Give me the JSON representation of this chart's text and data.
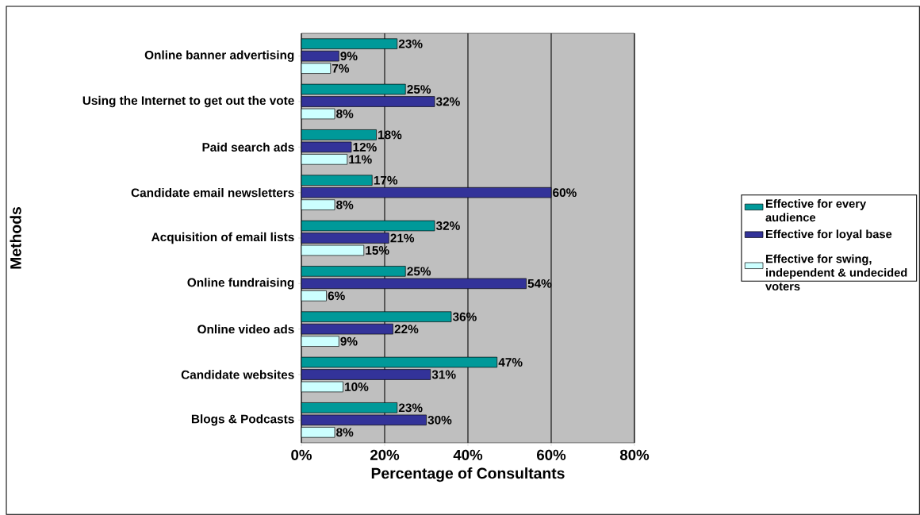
{
  "chart_data": {
    "type": "bar",
    "orientation": "horizontal",
    "xlabel": "Percentage of Consultants",
    "ylabel": "Methods",
    "categories": [
      "Online banner advertising",
      "Using the Internet to get out the vote",
      "Paid search ads",
      "Candidate email newsletters",
      "Acquisition of email lists",
      "Online fundraising",
      "Online video ads",
      "Candidate websites",
      "Blogs & Podcasts"
    ],
    "series": [
      {
        "name": "Effective for every audience",
        "color": "#009999",
        "values": [
          23,
          25,
          18,
          17,
          32,
          25,
          36,
          47,
          23
        ],
        "value_labels": [
          "23%",
          "25%",
          "18%",
          "17%",
          "32%",
          "25%",
          "36%",
          "47%",
          "23%"
        ]
      },
      {
        "name": "Effective for loyal base",
        "color": "#333399",
        "values": [
          9,
          32,
          12,
          60,
          21,
          54,
          22,
          31,
          30
        ],
        "value_labels": [
          "9%",
          "32%",
          "12%",
          "60%",
          "21%",
          "54%",
          "22%",
          "31%",
          "30%"
        ]
      },
      {
        "name": "Effective for swing, independent & undecided voters",
        "color": "#ccffff",
        "values": [
          7,
          8,
          11,
          8,
          15,
          6,
          9,
          10,
          8
        ],
        "value_labels": [
          "7%",
          "8%",
          "11%",
          "8%",
          "15%",
          "6%",
          "9%",
          "10%",
          "8%"
        ]
      }
    ],
    "xlim": [
      0,
      80
    ],
    "xticks": [
      {
        "value": 0,
        "label": "0%"
      },
      {
        "value": 20,
        "label": "20%"
      },
      {
        "value": 40,
        "label": "40%"
      },
      {
        "value": 60,
        "label": "60%"
      },
      {
        "value": 80,
        "label": "80%"
      }
    ],
    "grid": "x",
    "legend": "right"
  }
}
